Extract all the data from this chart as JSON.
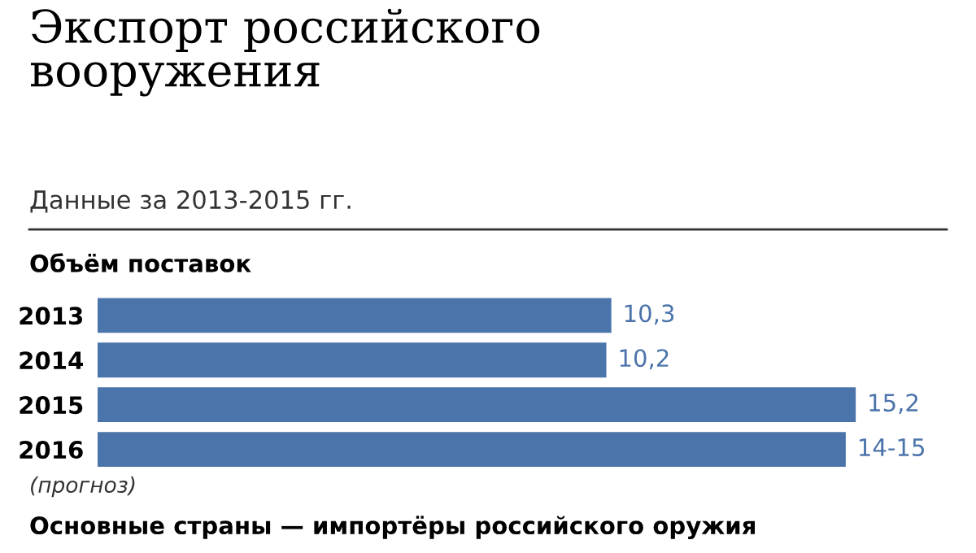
{
  "chart_data": {
    "type": "bar",
    "orientation": "horizontal",
    "title": "Экспорт российского\nвооружения",
    "subtitle": "Данные за 2013-2015 гг.",
    "categories": [
      "2013",
      "2014",
      "2015",
      "2016"
    ],
    "values": [
      10.3,
      10.2,
      15.2,
      15
    ],
    "value_labels": [
      "10,3",
      "10,2",
      "15,2",
      "14-15"
    ],
    "color": "#4b74ab",
    "annotations": [
      "Объём поставок",
      "(прогноз)",
      "Основные страны — импортёры российского оружия"
    ]
  }
}
